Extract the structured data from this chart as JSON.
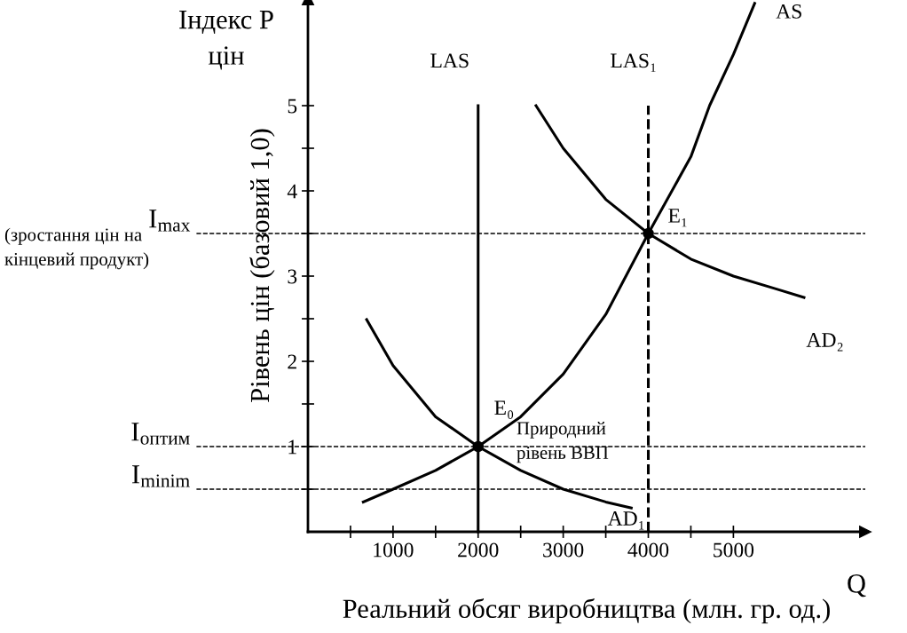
{
  "chart_data": {
    "type": "line",
    "xlabel": "Реальний обсяг виробництва (млн. гр. од.)",
    "ylabel": "Рівень цін (базовий 1,0)",
    "xlim": [
      0,
      6550
    ],
    "ylim": [
      0,
      6.25
    ],
    "xticks": [
      {
        "value": 500,
        "label": null
      },
      1000,
      {
        "value": 1500,
        "label": null
      },
      2000,
      {
        "value": 2500,
        "label": null
      },
      3000,
      {
        "value": 3500,
        "label": null
      },
      4000,
      {
        "value": 4500,
        "label": null
      },
      5000
    ],
    "yticks": [
      {
        "value": 0.5,
        "label": null
      },
      1,
      {
        "value": 1.5,
        "label": null
      },
      2,
      {
        "value": 2.5,
        "label": null
      },
      3,
      {
        "value": 3.5,
        "label": null
      },
      4,
      {
        "value": 4.5,
        "label": null
      },
      5
    ],
    "grid": false,
    "legend": false,
    "line_style": "solid",
    "marker": "none",
    "series": [
      {
        "name": "AS",
        "color": "#000000",
        "x": [
          650,
          1000,
          1500,
          2000,
          2500,
          3000,
          3500,
          4000,
          4500,
          4720,
          5000,
          5250
        ],
        "values": [
          0.35,
          0.5,
          0.72,
          1,
          1.35,
          1.85,
          2.55,
          3.5,
          4.4,
          5,
          5.6,
          6.2
        ]
      },
      {
        "name": "AD₁",
        "color": "#000000",
        "x": [
          690,
          1000,
          1500,
          2000,
          2500,
          3000,
          3500,
          3800
        ],
        "values": [
          2.49,
          1.95,
          1.35,
          1,
          0.72,
          0.5,
          0.35,
          0.28
        ]
      },
      {
        "name": "AD₂",
        "color": "#000000",
        "x": [
          2680,
          3000,
          3500,
          4000,
          4500,
          5000,
          5500,
          5830
        ],
        "values": [
          5,
          4.5,
          3.9,
          3.5,
          3.2,
          3.0,
          2.85,
          2.75
        ]
      },
      {
        "name": "LAS",
        "color": "#000000",
        "x": [
          2000,
          2000
        ],
        "values": [
          0,
          5
        ]
      },
      {
        "name": "LAS₁",
        "color": "#000000",
        "line_style": "dashed",
        "x": [
          4000,
          4000
        ],
        "values": [
          0,
          5
        ]
      },
      {
        "type": "scatter",
        "color": "#000000",
        "marker": "circle",
        "x": [
          2000,
          4000
        ],
        "values": [
          1,
          3.5
        ]
      }
    ],
    "ref_lines": [
      {
        "axis": "y",
        "value": 3.5,
        "label": "I$_{max}$",
        "color": "#000000",
        "line_style": "dashed"
      },
      {
        "axis": "y",
        "value": 1,
        "label": "I$_{оптим}$",
        "color": "#000000",
        "line_style": "dashed"
      },
      {
        "axis": "y",
        "value": 0.5,
        "label": "I$_{minim}$",
        "color": "#000000",
        "line_style": "dashed"
      }
    ],
    "annotations": [
      {
        "text": "E₀",
        "x": 2000,
        "y": 1
      },
      {
        "text": "E₁",
        "x": 4000,
        "y": 3.5
      },
      "Природний\nрівень ВВП",
      "(зростання цін на\nкінцевий продукт)",
      "Індекс Р\nцін",
      "Q"
    ]
  }
}
